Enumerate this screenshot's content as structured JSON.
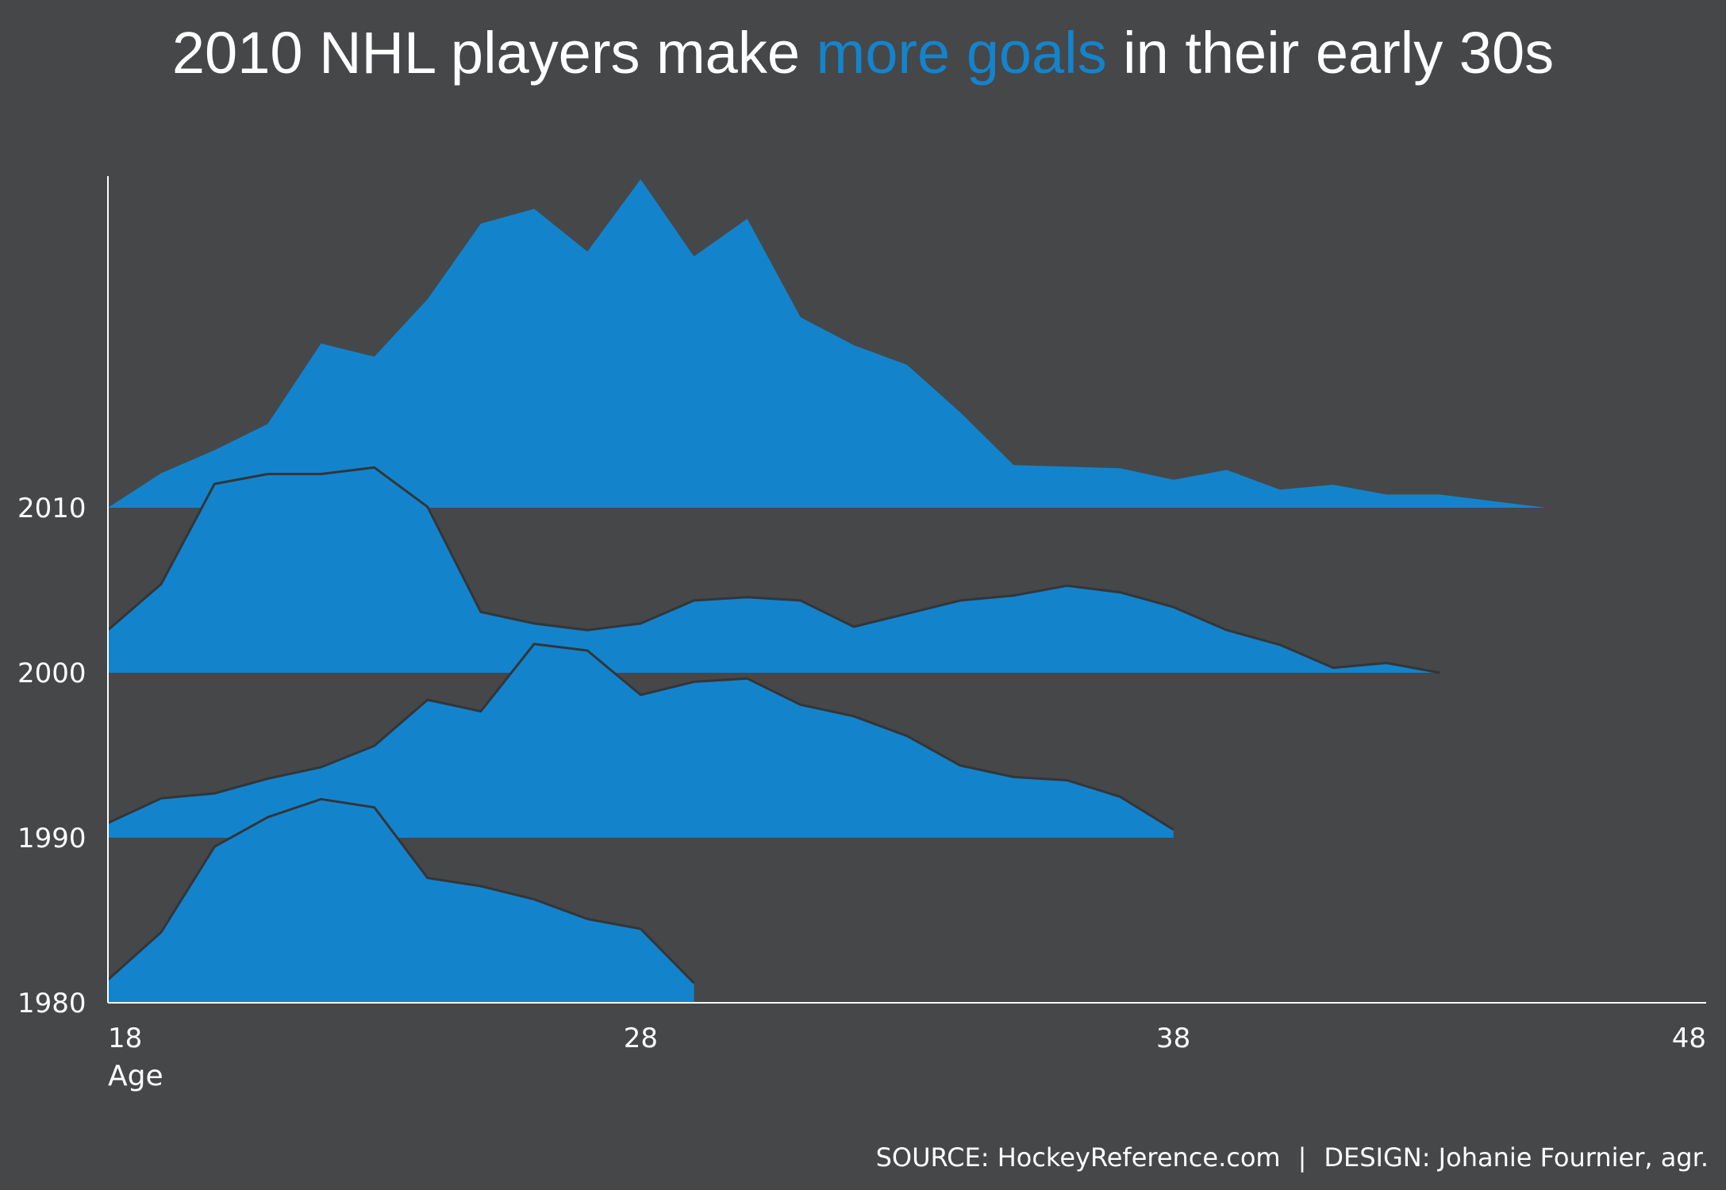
{
  "title": {
    "before": "2010 NHL players make",
    "highlight": "more goals",
    "after": "in their early 30s"
  },
  "footer": {
    "source": "SOURCE:  HockeyReference.com",
    "separator": "|",
    "design": "DESIGN: Johanie Fournier, agr."
  },
  "colors": {
    "background": "#464749",
    "fill": "#1384cc",
    "outline": "#333538",
    "text": "#ffffff",
    "highlight": "#1384cc"
  },
  "chart_data": {
    "type": "area",
    "subtype": "ridgeline",
    "xlabel": "Age",
    "x_ticks": [
      18,
      28,
      38,
      48
    ],
    "xlim": [
      18,
      48
    ],
    "y_categories": [
      "1980",
      "1990",
      "2000",
      "2010"
    ],
    "series": [
      {
        "name": "1980",
        "x": [
          18,
          19,
          20,
          21,
          22,
          23,
          24,
          25,
          26,
          27,
          28,
          29
        ],
        "values": [
          0.14,
          0.43,
          0.95,
          1.13,
          1.24,
          1.19,
          0.76,
          0.71,
          0.63,
          0.51,
          0.45,
          0.12
        ]
      },
      {
        "name": "1990",
        "x": [
          18,
          19,
          20,
          21,
          22,
          23,
          24,
          25,
          26,
          27,
          28,
          29,
          30,
          31,
          32,
          33,
          34,
          35,
          36,
          37,
          38
        ],
        "values": [
          0.09,
          0.24,
          0.27,
          0.36,
          0.43,
          0.56,
          0.84,
          0.77,
          1.18,
          1.14,
          0.87,
          0.95,
          0.97,
          0.81,
          0.74,
          0.62,
          0.44,
          0.37,
          0.35,
          0.25,
          0.05
        ]
      },
      {
        "name": "2000",
        "x": [
          18,
          19,
          20,
          21,
          22,
          23,
          24,
          25,
          26,
          27,
          28,
          29,
          30,
          31,
          32,
          33,
          34,
          35,
          36,
          37,
          38,
          39,
          40,
          41,
          42,
          43
        ],
        "values": [
          0.26,
          0.54,
          1.15,
          1.21,
          1.21,
          1.25,
          1.01,
          0.37,
          0.3,
          0.26,
          0.3,
          0.44,
          0.46,
          0.44,
          0.28,
          0.36,
          0.44,
          0.47,
          0.53,
          0.49,
          0.4,
          0.26,
          0.17,
          0.03,
          0.06,
          0.0
        ]
      },
      {
        "name": "2010",
        "x": [
          18,
          19,
          20,
          21,
          22,
          23,
          24,
          25,
          26,
          27,
          28,
          29,
          30,
          31,
          32,
          33,
          34,
          35,
          36,
          37,
          38,
          39,
          40,
          41,
          42,
          43,
          44,
          45
        ],
        "values": [
          0.0,
          0.21,
          0.35,
          0.51,
          1.0,
          0.92,
          1.27,
          1.73,
          1.82,
          1.56,
          2.0,
          1.53,
          1.76,
          1.16,
          0.99,
          0.87,
          0.58,
          0.26,
          0.25,
          0.24,
          0.17,
          0.23,
          0.11,
          0.14,
          0.08,
          0.08,
          0.04,
          0.0
        ]
      }
    ]
  }
}
